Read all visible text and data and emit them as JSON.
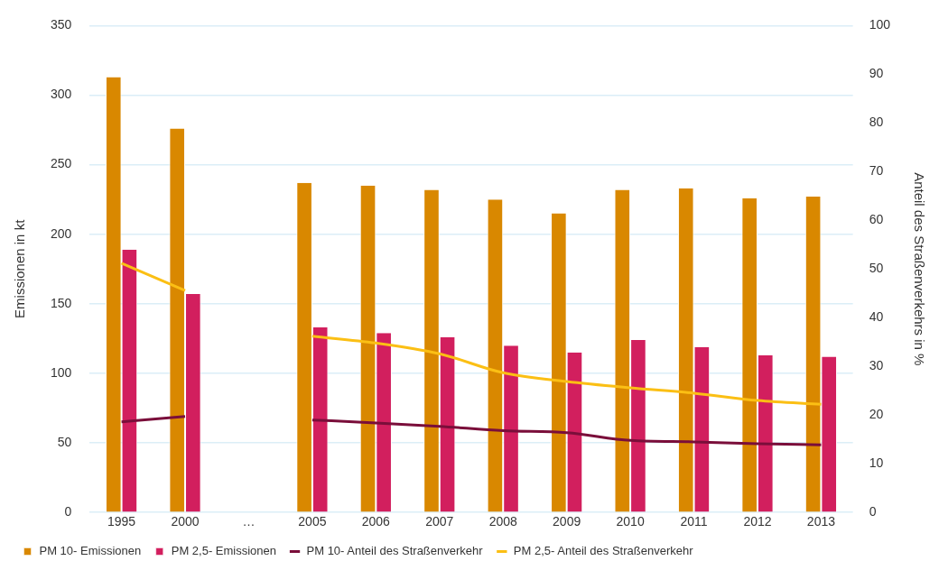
{
  "chart_data": {
    "type": "bar",
    "ylabel": "Emissionen in kt",
    "y2label": "Anteil des Straßenverkehrs in %",
    "categories": [
      "1995",
      "2000",
      "…",
      "2005",
      "2006",
      "2007",
      "2008",
      "2009",
      "2010",
      "2011",
      "2012",
      "2013"
    ],
    "series": [
      {
        "name": "PM 10- Emissionen",
        "color": "#d98800",
        "values": [
          313,
          276,
          null,
          237,
          235,
          232,
          225,
          215,
          232,
          233,
          226,
          227
        ]
      },
      {
        "name": "PM 2,5- Emissionen",
        "color": "#d21f5e",
        "values": [
          189,
          157,
          null,
          133,
          129,
          126,
          120,
          115,
          124,
          119,
          113,
          112
        ]
      },
      {
        "name": "PM 10- Anteil des Straßenverkehr",
        "type": "line",
        "axis": "y2",
        "color": "#7a0e3a",
        "values": [
          18.6,
          19.7,
          null,
          19.0,
          18.4,
          17.7,
          16.8,
          16.4,
          14.8,
          14.5,
          14.1,
          13.9
        ]
      },
      {
        "name": "PM 2,5- Anteil des Straßenverkehr",
        "type": "line",
        "axis": "y2",
        "color": "#fbbf14",
        "values": [
          51.2,
          45.6,
          null,
          36.2,
          34.8,
          32.6,
          28.7,
          26.9,
          25.6,
          24.5,
          23.0,
          22.2
        ]
      }
    ],
    "ylim": [
      0,
      350
    ],
    "yticks": [
      0,
      50,
      100,
      150,
      200,
      250,
      300,
      350
    ],
    "y2lim": [
      0,
      100
    ],
    "y2ticks": [
      0,
      10,
      20,
      30,
      40,
      50,
      60,
      70,
      80,
      90,
      100
    ],
    "grid": "y",
    "legend": "bottom",
    "marker": "none"
  }
}
